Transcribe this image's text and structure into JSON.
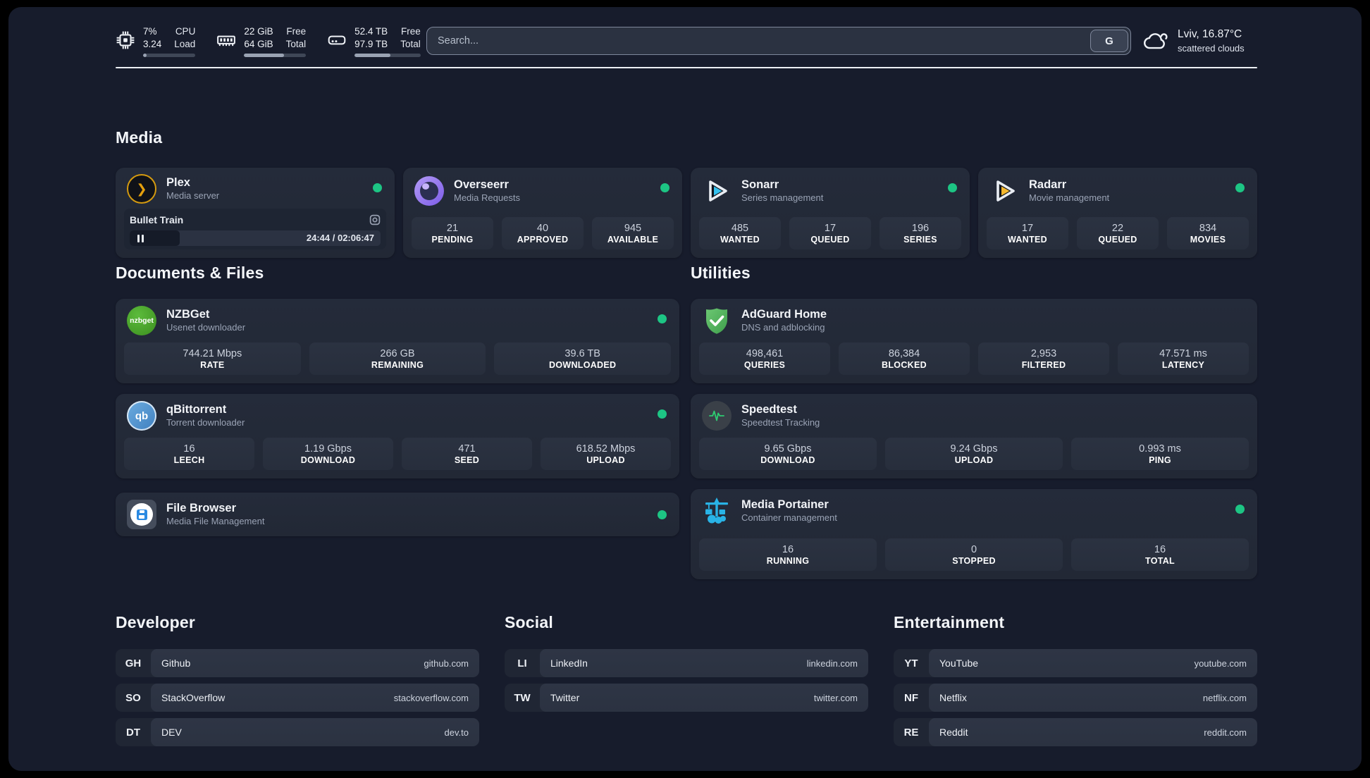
{
  "theme": {
    "background": "#171c2c",
    "card": "#232a38",
    "chip": "#2a3140",
    "status_green": "#1dc584",
    "plex_gold": "#e5a00d",
    "sonarr_cyan": "#35c1ee",
    "radarr_amber": "#f5b82e",
    "adguard_green": "#56b45c",
    "portainer_blue": "#29b3e6",
    "speedtest_pulse": "#2ecc71",
    "nzbget_green": "#4ba32a",
    "qbittorrent_blue": "#5598d2"
  },
  "topbar": {
    "cpu": {
      "value_top": "7%",
      "value_bottom": "3.24",
      "label_top": "CPU",
      "label_bottom": "Load",
      "progress_pct": 7
    },
    "memory": {
      "value_top": "22 GiB",
      "value_bottom": "64 GiB",
      "label_top": "Free",
      "label_bottom": "Total",
      "progress_pct": 65
    },
    "storage": {
      "value_top": "52.4 TB",
      "value_bottom": "97.9 TB",
      "label_top": "Free",
      "label_bottom": "Total",
      "progress_pct": 54
    },
    "search": {
      "placeholder": "Search...",
      "button_label": "G"
    },
    "weather": {
      "location_temp": "Lviv, 16.87°C",
      "condition": "scattered clouds"
    }
  },
  "sections": {
    "media": {
      "title": "Media"
    },
    "documents": {
      "title": "Documents & Files"
    },
    "utilities": {
      "title": "Utilities"
    },
    "developer": {
      "title": "Developer"
    },
    "social": {
      "title": "Social"
    },
    "entertainment": {
      "title": "Entertainment"
    }
  },
  "apps": {
    "plex": {
      "name": "Plex",
      "desc": "Media server",
      "status_dot": true,
      "icon_glyph": "❯",
      "player": {
        "title": "Bullet Train",
        "time": "24:44 / 02:06:47",
        "progress_pct": 20
      }
    },
    "overseerr": {
      "name": "Overseerr",
      "desc": "Media Requests",
      "status_dot": true,
      "stats": [
        {
          "value": "21",
          "label": "PENDING"
        },
        {
          "value": "40",
          "label": "APPROVED"
        },
        {
          "value": "945",
          "label": "AVAILABLE"
        }
      ]
    },
    "sonarr": {
      "name": "Sonarr",
      "desc": "Series management",
      "status_dot": true,
      "stats": [
        {
          "value": "485",
          "label": "WANTED"
        },
        {
          "value": "17",
          "label": "QUEUED"
        },
        {
          "value": "196",
          "label": "SERIES"
        }
      ]
    },
    "radarr": {
      "name": "Radarr",
      "desc": "Movie management",
      "status_dot": true,
      "stats": [
        {
          "value": "17",
          "label": "WANTED"
        },
        {
          "value": "22",
          "label": "QUEUED"
        },
        {
          "value": "834",
          "label": "MOVIES"
        }
      ]
    },
    "nzbget": {
      "name": "NZBGet",
      "desc": "Usenet downloader",
      "status_dot": true,
      "icon_text": "nzbget",
      "stats": [
        {
          "value": "744.21 Mbps",
          "label": "RATE"
        },
        {
          "value": "266 GB",
          "label": "REMAINING"
        },
        {
          "value": "39.6 TB",
          "label": "DOWNLOADED"
        }
      ]
    },
    "qbittorrent": {
      "name": "qBittorrent",
      "desc": "Torrent downloader",
      "status_dot": true,
      "icon_text": "qb",
      "stats": [
        {
          "value": "16",
          "label": "LEECH"
        },
        {
          "value": "1.19 Gbps",
          "label": "DOWNLOAD"
        },
        {
          "value": "471",
          "label": "SEED"
        },
        {
          "value": "618.52 Mbps",
          "label": "UPLOAD"
        }
      ]
    },
    "filebrowser": {
      "name": "File Browser",
      "desc": "Media File Management",
      "status_dot": true
    },
    "adguard": {
      "name": "AdGuard Home",
      "desc": "DNS and adblocking",
      "status_dot": false,
      "stats": [
        {
          "value": "498,461",
          "label": "QUERIES"
        },
        {
          "value": "86,384",
          "label": "BLOCKED"
        },
        {
          "value": "2,953",
          "label": "FILTERED"
        },
        {
          "value": "47.571 ms",
          "label": "LATENCY"
        }
      ]
    },
    "speedtest": {
      "name": "Speedtest",
      "desc": "Speedtest Tracking",
      "status_dot": false,
      "stats": [
        {
          "value": "9.65 Gbps",
          "label": "DOWNLOAD"
        },
        {
          "value": "9.24 Gbps",
          "label": "UPLOAD"
        },
        {
          "value": "0.993 ms",
          "label": "PING"
        }
      ]
    },
    "portainer": {
      "name": "Media Portainer",
      "desc": "Container management",
      "status_dot": true,
      "stats": [
        {
          "value": "16",
          "label": "RUNNING"
        },
        {
          "value": "0",
          "label": "STOPPED"
        },
        {
          "value": "16",
          "label": "TOTAL"
        }
      ]
    }
  },
  "links": {
    "developer": [
      {
        "abbr": "GH",
        "name": "Github",
        "url": "github.com"
      },
      {
        "abbr": "SO",
        "name": "StackOverflow",
        "url": "stackoverflow.com"
      },
      {
        "abbr": "DT",
        "name": "DEV",
        "url": "dev.to"
      }
    ],
    "social": [
      {
        "abbr": "LI",
        "name": "LinkedIn",
        "url": "linkedin.com"
      },
      {
        "abbr": "TW",
        "name": "Twitter",
        "url": "twitter.com"
      }
    ],
    "entertainment": [
      {
        "abbr": "YT",
        "name": "YouTube",
        "url": "youtube.com"
      },
      {
        "abbr": "NF",
        "name": "Netflix",
        "url": "netflix.com"
      },
      {
        "abbr": "RE",
        "name": "Reddit",
        "url": "reddit.com"
      }
    ]
  }
}
